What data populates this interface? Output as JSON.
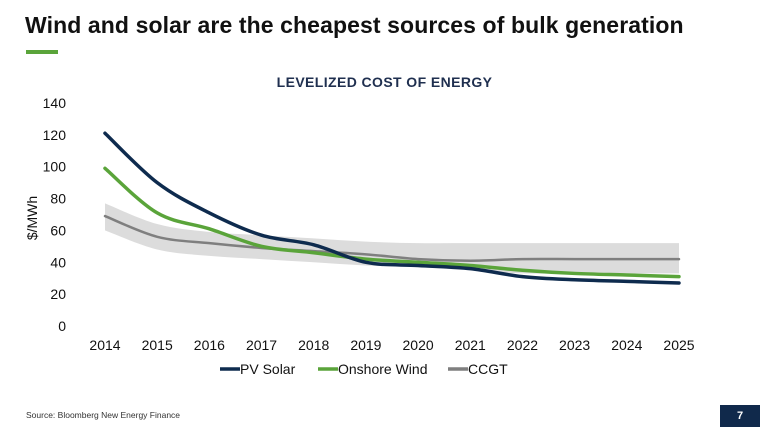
{
  "slide": {
    "title": "Wind and solar are the cheapest sources of bulk generation",
    "source": "Source: Bloomberg New Energy Finance",
    "page_number": "7"
  },
  "colors": {
    "accent": "#5aa43a",
    "navy": "#0e2b4e",
    "gray": "#7f7f7f",
    "band": "#dcdcdc",
    "badge": "#10294b"
  },
  "chart_data": {
    "type": "line",
    "title": "LEVELIZED COST OF ENERGY",
    "xlabel": "",
    "ylabel": "$/MWh",
    "x": [
      2014,
      2015,
      2016,
      2017,
      2018,
      2019,
      2020,
      2021,
      2022,
      2023,
      2024,
      2025
    ],
    "ylim": [
      0,
      140
    ],
    "yticks": [
      0,
      20,
      40,
      60,
      80,
      100,
      120,
      140
    ],
    "grid": false,
    "legend_position": "bottom",
    "series": [
      {
        "name": "PV Solar",
        "color": "#0e2b4e",
        "values": [
          121,
          90,
          71,
          57,
          51,
          40,
          38,
          36,
          31,
          29,
          28,
          27
        ]
      },
      {
        "name": "Onshore Wind",
        "color": "#5aa43a",
        "values": [
          99,
          71,
          61,
          50,
          46,
          42,
          40,
          38,
          35,
          33,
          32,
          31
        ]
      },
      {
        "name": "CCGT",
        "color": "#7f7f7f",
        "values": [
          69,
          56,
          52,
          49,
          47,
          45,
          42,
          41,
          42,
          42,
          42,
          42
        ]
      }
    ],
    "band": {
      "upper": [
        77,
        64,
        59,
        57,
        55,
        53,
        52,
        52,
        52,
        52,
        52,
        52
      ],
      "lower": [
        60,
        48,
        44,
        42,
        40,
        38,
        37,
        35,
        33,
        33,
        33,
        33
      ]
    }
  }
}
